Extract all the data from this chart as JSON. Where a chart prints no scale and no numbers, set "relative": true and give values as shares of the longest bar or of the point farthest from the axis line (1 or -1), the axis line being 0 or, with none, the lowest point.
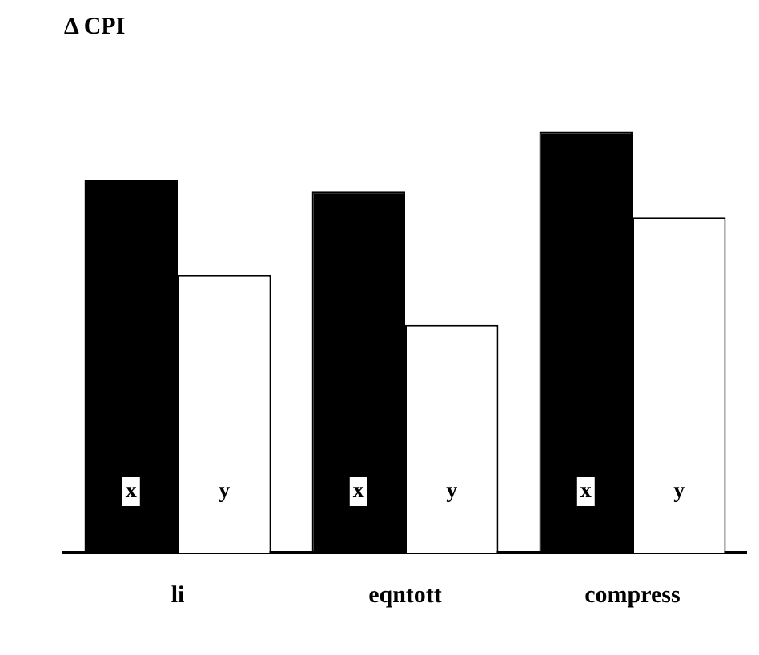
{
  "chart_data": {
    "type": "bar",
    "title": "Δ CPI",
    "relative": true,
    "categories": [
      "li",
      "eqntott",
      "compress"
    ],
    "series": [
      {
        "name": "x",
        "color": "#000000",
        "values": [
          0.885,
          0.858,
          1
        ]
      },
      {
        "name": "y",
        "color": "#ffffff",
        "values": [
          0.659,
          0.541,
          0.797
        ]
      }
    ],
    "legend": false,
    "grid": false
  }
}
